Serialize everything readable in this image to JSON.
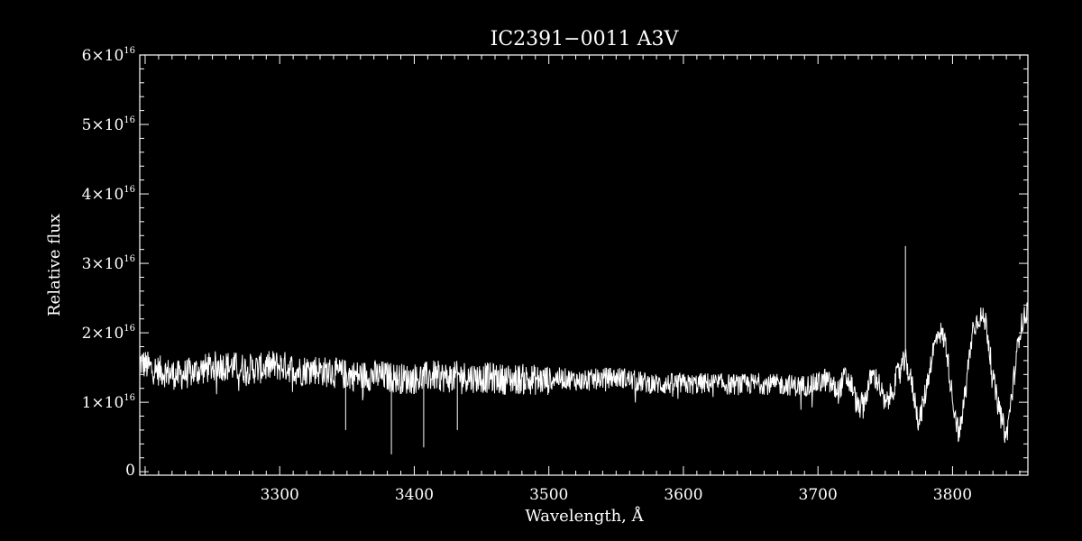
{
  "chart_data": {
    "type": "line",
    "title": "IC2391−0011   A3V",
    "xlabel": "Wavelength, Å",
    "ylabel": "Relative flux",
    "xlim": [
      3196,
      3856
    ],
    "ylim": [
      -500000000000000.0,
      6e+16
    ],
    "x_ticks": [
      3300,
      3400,
      3500,
      3600,
      3700,
      3800
    ],
    "x_tick_labels": [
      "3300",
      "3400",
      "3500",
      "3600",
      "3700",
      "3800"
    ],
    "y_ticks": [
      0,
      1e+16,
      2e+16,
      3e+16,
      4e+16,
      5e+16,
      6e+16
    ],
    "y_tick_labels": [
      {
        "base": "0",
        "exp": ""
      },
      {
        "base": "1×10",
        "exp": "16"
      },
      {
        "base": "2×10",
        "exp": "16"
      },
      {
        "base": "3×10",
        "exp": "16"
      },
      {
        "base": "4×10",
        "exp": "16"
      },
      {
        "base": "5×10",
        "exp": "16"
      },
      {
        "base": "6×10",
        "exp": "16"
      }
    ],
    "grid": false,
    "colors": {
      "background": "#000000",
      "line": "#ffffff",
      "axes": "#ffffff"
    },
    "series": [
      {
        "x": [
          3196,
          3205,
          3215,
          3225,
          3235,
          3245,
          3255,
          3265,
          3275,
          3285,
          3295,
          3305,
          3315,
          3325,
          3335,
          3345,
          3355,
          3365,
          3375,
          3385,
          3395,
          3405,
          3415,
          3425,
          3435,
          3445,
          3455,
          3465,
          3475,
          3485,
          3495,
          3505,
          3515,
          3525,
          3535,
          3545,
          3555,
          3565,
          3575,
          3585,
          3595,
          3605,
          3615,
          3625,
          3635,
          3645,
          3655,
          3665,
          3675,
          3685,
          3695,
          3700,
          3705,
          3710,
          3715,
          3720,
          3725,
          3730,
          3735,
          3740,
          3745,
          3750,
          3755,
          3760,
          3765,
          3770,
          3775,
          3780,
          3785,
          3790,
          3795,
          3800,
          3805,
          3810,
          3815,
          3820,
          3825,
          3830,
          3835,
          3840,
          3845,
          3850,
          3856
        ],
        "y": [
          1.65e+16,
          1.55e+16,
          1.5e+16,
          1.45e+16,
          1.5e+16,
          1.55e+16,
          1.6e+16,
          1.58e+16,
          1.55e+16,
          1.55e+16,
          1.6e+16,
          1.58e+16,
          1.52e+16,
          1.55e+16,
          1.5e+16,
          1.48e+16,
          1.45e+16,
          1.45e+16,
          1.45e+16,
          1.42e+16,
          1.4e+16,
          1.42e+16,
          1.45e+16,
          1.42e+16,
          1.45e+16,
          1.42e+16,
          1.42e+16,
          1.4e+16,
          1.4e+16,
          1.4e+16,
          1.38e+16,
          1.4e+16,
          1.38e+16,
          1.35e+16,
          1.38e+16,
          1.4e+16,
          1.4e+16,
          1.35e+16,
          1.32e+16,
          1.3e+16,
          1.32e+16,
          1.3e+16,
          1.32e+16,
          1.32e+16,
          1.3e+16,
          1.3e+16,
          1.32e+16,
          1.3e+16,
          1.3e+16,
          1.28e+16,
          1.3e+16,
          1.32e+16,
          1.38e+16,
          1.3e+16,
          1.2e+16,
          1.42e+16,
          1.3e+16,
          9500000000000000.0,
          1.1e+16,
          1.45e+16,
          1.35e+16,
          1e+16,
          1.2e+16,
          1.5e+16,
          1.65e+16,
          1.3e+16,
          7500000000000000.0,
          1.2e+16,
          1.75e+16,
          2.1e+16,
          1.9e+16,
          1.1e+16,
          5500000000000000.0,
          1.3e+16,
          2.1e+16,
          2.3e+16,
          2.2e+16,
          1.4e+16,
          9000000000000000.0,
          5500000000000000.0,
          1.3e+16,
          2.1e+16,
          2.4e+16
        ]
      }
    ],
    "annotations": [
      {
        "x": 3349,
        "y": 6000000000000000.0
      },
      {
        "x": 3383,
        "y": 2500000000000000.0
      },
      {
        "x": 3407,
        "y": 3500000000000000.0
      },
      {
        "x": 3432,
        "y": 6000000000000000.0
      },
      {
        "x": 3765,
        "y": 3.25e+16
      }
    ]
  }
}
